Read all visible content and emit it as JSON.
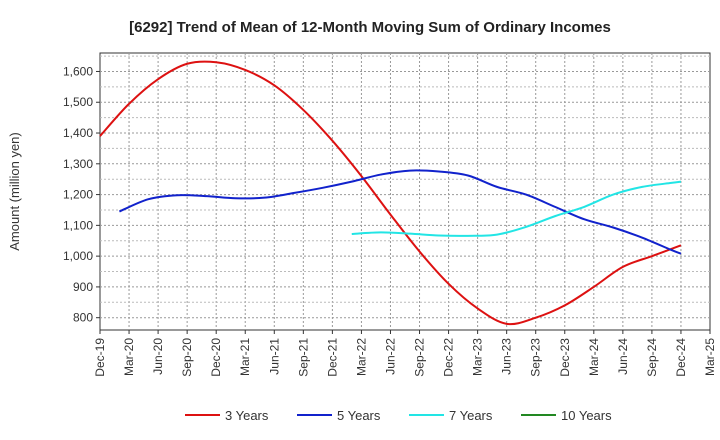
{
  "chart_data": {
    "type": "line",
    "title": "[6292]  Trend of Mean of 12-Month Moving Sum of Ordinary Incomes",
    "xlabel": "",
    "ylabel": "Amount (million yen)",
    "ylim": [
      760,
      1660
    ],
    "yticks": [
      800,
      900,
      1000,
      1100,
      1200,
      1300,
      1400,
      1500,
      1600
    ],
    "ytick_labels": [
      "800",
      "900",
      "1,000",
      "1,100",
      "1,200",
      "1,300",
      "1,400",
      "1,500",
      "1,600"
    ],
    "x_start_month_index": 0,
    "x_end_month_index": 63,
    "categories": [
      "Dec-19",
      "Mar-20",
      "Jun-20",
      "Sep-20",
      "Dec-20",
      "Mar-21",
      "Jun-21",
      "Sep-21",
      "Dec-21",
      "Mar-22",
      "Jun-22",
      "Sep-22",
      "Dec-22",
      "Mar-23",
      "Jun-23",
      "Sep-23",
      "Dec-23",
      "Mar-24",
      "Jun-24",
      "Sep-24",
      "Dec-24",
      "Mar-25"
    ],
    "grid": true,
    "legend_position": "bottom",
    "series": [
      {
        "name": "3 Years",
        "color": "#dd1111",
        "points": [
          [
            0,
            1390
          ],
          [
            3,
            1495
          ],
          [
            6,
            1575
          ],
          [
            9,
            1625
          ],
          [
            12,
            1630
          ],
          [
            15,
            1605
          ],
          [
            18,
            1555
          ],
          [
            21,
            1475
          ],
          [
            24,
            1375
          ],
          [
            27,
            1260
          ],
          [
            30,
            1135
          ],
          [
            33,
            1015
          ],
          [
            36,
            910
          ],
          [
            39,
            830
          ],
          [
            42,
            780
          ],
          [
            45,
            800
          ],
          [
            48,
            840
          ],
          [
            51,
            900
          ],
          [
            54,
            965
          ],
          [
            57,
            1000
          ],
          [
            60,
            1035
          ]
        ]
      },
      {
        "name": "5 Years",
        "color": "#1122cc",
        "points": [
          [
            2,
            1145
          ],
          [
            5,
            1185
          ],
          [
            8,
            1198
          ],
          [
            11,
            1195
          ],
          [
            14,
            1188
          ],
          [
            17,
            1190
          ],
          [
            20,
            1205
          ],
          [
            23,
            1222
          ],
          [
            26,
            1242
          ],
          [
            29,
            1265
          ],
          [
            32,
            1278
          ],
          [
            35,
            1275
          ],
          [
            38,
            1262
          ],
          [
            41,
            1225
          ],
          [
            44,
            1200
          ],
          [
            47,
            1160
          ],
          [
            50,
            1120
          ],
          [
            53,
            1093
          ],
          [
            56,
            1060
          ],
          [
            59,
            1020
          ],
          [
            60,
            1008
          ]
        ]
      },
      {
        "name": "7 Years",
        "color": "#22e5e5",
        "points": [
          [
            26,
            1072
          ],
          [
            29,
            1077
          ],
          [
            32,
            1073
          ],
          [
            35,
            1067
          ],
          [
            38,
            1066
          ],
          [
            41,
            1070
          ],
          [
            44,
            1095
          ],
          [
            47,
            1130
          ],
          [
            50,
            1160
          ],
          [
            53,
            1200
          ],
          [
            56,
            1225
          ],
          [
            59,
            1238
          ],
          [
            60,
            1242
          ]
        ]
      },
      {
        "name": "10 Years",
        "color": "#228822",
        "points": []
      }
    ]
  }
}
